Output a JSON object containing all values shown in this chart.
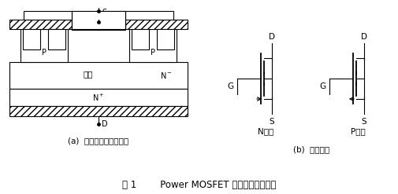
{
  "title": "图 1        Power MOSFET 的结构和电气符号",
  "label_a": "(a)  内部结构剪面示意图",
  "label_b": "(b)  电气符号",
  "n_channel_label": "N沟道",
  "p_channel_label": "P沟道",
  "gou_dao": "沟道",
  "line_color": "#000000",
  "fig_width": 5.06,
  "fig_height": 2.47,
  "dpi": 100
}
